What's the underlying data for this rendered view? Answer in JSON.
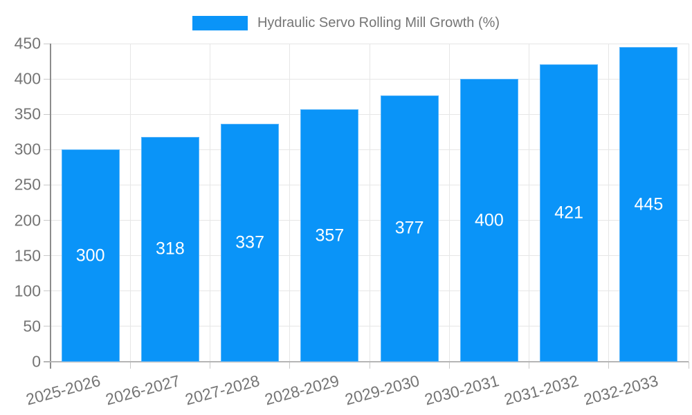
{
  "legend": {
    "label": "Hydraulic Servo Rolling Mill Growth (%)"
  },
  "chart_data": {
    "type": "bar",
    "title": "",
    "categories": [
      "2025-2026",
      "2026-2027",
      "2027-2028",
      "2028-2029",
      "2029-2030",
      "2030-2031",
      "2031-2032",
      "2032-2033"
    ],
    "series": [
      {
        "name": "Hydraulic Servo Rolling Mill Growth (%)",
        "values": [
          300,
          318,
          337,
          357,
          377,
          400,
          421,
          445
        ]
      }
    ],
    "value_labels": [
      "300",
      "318",
      "337",
      "357",
      "377",
      "400",
      "421",
      "445"
    ],
    "xlabel": "",
    "ylabel": "",
    "ylim": [
      0,
      450
    ],
    "yticks": [
      0,
      50,
      100,
      150,
      200,
      250,
      300,
      350,
      400,
      450
    ],
    "grid": true,
    "legend_position": "top",
    "value_label_position": "inside-center"
  },
  "colors": {
    "bar": "#0a94f8",
    "bar_border": "#5ab5fa",
    "grid": "#e6e6e6",
    "axis_y": "#8c8c8c",
    "axis_x": "#b5b5b5",
    "tick": "#c8c8c8",
    "label": "#757575",
    "value_label": "#ffffff",
    "background": "#ffffff"
  }
}
